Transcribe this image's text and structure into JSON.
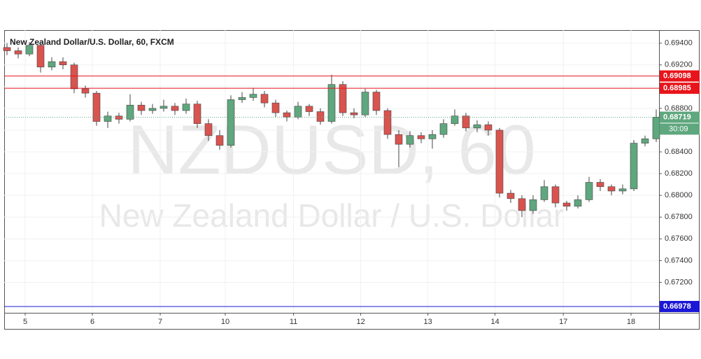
{
  "chart_data": {
    "type": "candlestick",
    "title": "New Zealand Dollar/U.S. Dollar, 60, FXCM",
    "watermark": "NZDUSD, 60",
    "watermark_subtitle": "New Zealand Dollar / U.S. Dollar",
    "up_color": "#5fa77e",
    "down_color": "#d9534f",
    "open": [
      0.6936,
      0.6933,
      0.693,
      0.6938,
      0.6918,
      0.6923,
      0.692,
      0.6898,
      0.6894,
      0.6868,
      0.6873,
      0.687,
      0.6883,
      0.6878,
      0.688,
      0.6882,
      0.6878,
      0.6884,
      0.6866,
      0.6855,
      0.6846,
      0.6888,
      0.689,
      0.6893,
      0.6885,
      0.6876,
      0.6872,
      0.6882,
      0.6877,
      0.6868,
      0.6902,
      0.6876,
      0.6874,
      0.6895,
      0.6878,
      0.6856,
      0.6847,
      0.6855,
      0.6852,
      0.6856,
      0.6866,
      0.6873,
      0.6862,
      0.6865,
      0.686,
      0.6802,
      0.6797,
      0.6786,
      0.6796,
      0.6808,
      0.6793,
      0.679,
      0.6796,
      0.6812,
      0.6808,
      0.6804,
      0.6806,
      0.6848,
      0.6852
    ],
    "high": [
      0.694,
      0.6936,
      0.6941,
      0.694,
      0.6927,
      0.6927,
      0.6922,
      0.6901,
      0.6896,
      0.6877,
      0.6876,
      0.6893,
      0.6886,
      0.6884,
      0.6888,
      0.6885,
      0.6889,
      0.6887,
      0.687,
      0.686,
      0.6892,
      0.6895,
      0.6899,
      0.6896,
      0.6888,
      0.6878,
      0.6886,
      0.6884,
      0.688,
      0.6911,
      0.6905,
      0.688,
      0.6898,
      0.6897,
      0.688,
      0.686,
      0.6859,
      0.6858,
      0.686,
      0.687,
      0.6879,
      0.6876,
      0.6869,
      0.6868,
      0.6862,
      0.6805,
      0.68,
      0.68,
      0.6814,
      0.681,
      0.6795,
      0.68,
      0.6817,
      0.6815,
      0.681,
      0.681,
      0.6851,
      0.6855,
      0.6879
    ],
    "low": [
      0.6929,
      0.6926,
      0.6928,
      0.6913,
      0.6915,
      0.6916,
      0.6894,
      0.689,
      0.6864,
      0.6862,
      0.6866,
      0.6868,
      0.6874,
      0.6875,
      0.6877,
      0.6874,
      0.6875,
      0.6862,
      0.685,
      0.6842,
      0.6844,
      0.6885,
      0.6887,
      0.6881,
      0.6872,
      0.6868,
      0.687,
      0.6873,
      0.6865,
      0.6866,
      0.6873,
      0.6871,
      0.6872,
      0.6874,
      0.6852,
      0.6826,
      0.6844,
      0.6848,
      0.6843,
      0.6853,
      0.6864,
      0.6859,
      0.6858,
      0.6855,
      0.6798,
      0.6793,
      0.678,
      0.6783,
      0.6794,
      0.6789,
      0.6786,
      0.6788,
      0.6794,
      0.6804,
      0.68,
      0.6801,
      0.6804,
      0.6845,
      0.6849
    ],
    "close": [
      0.6933,
      0.693,
      0.6938,
      0.6918,
      0.6923,
      0.692,
      0.6898,
      0.6894,
      0.6868,
      0.6873,
      0.687,
      0.6883,
      0.6878,
      0.688,
      0.6882,
      0.6878,
      0.6884,
      0.6866,
      0.6855,
      0.6846,
      0.6888,
      0.689,
      0.6893,
      0.6885,
      0.6876,
      0.6872,
      0.6882,
      0.6877,
      0.6868,
      0.6902,
      0.6876,
      0.6874,
      0.6895,
      0.6878,
      0.6856,
      0.6847,
      0.6855,
      0.6852,
      0.6856,
      0.6866,
      0.6873,
      0.6862,
      0.6865,
      0.686,
      0.6802,
      0.6797,
      0.6786,
      0.6796,
      0.6808,
      0.6793,
      0.679,
      0.6796,
      0.6812,
      0.6808,
      0.6804,
      0.6806,
      0.6848,
      0.6852,
      0.6872
    ],
    "xlim": [
      -0.25,
      58.25
    ],
    "xticks": [
      {
        "value": 1.625,
        "label": "5"
      },
      {
        "value": 7.625,
        "label": "6"
      },
      {
        "value": 13.69,
        "label": "7"
      },
      {
        "value": 19.5,
        "label": "10"
      },
      {
        "value": 25.6,
        "label": "11"
      },
      {
        "value": 31.6,
        "label": "12"
      },
      {
        "value": 37.6,
        "label": "13"
      },
      {
        "value": 43.6,
        "label": "14"
      },
      {
        "value": 49.7,
        "label": "17"
      },
      {
        "value": 55.75,
        "label": "18"
      }
    ],
    "ylim": [
      0.6692,
      0.6952
    ],
    "yticks": [
      {
        "value": 0.694,
        "label": "0.69400"
      },
      {
        "value": 0.692,
        "label": "0.69200"
      },
      {
        "value": 0.69,
        "label": "0.69000"
      },
      {
        "value": 0.688,
        "label": "0.68800"
      },
      {
        "value": 0.686,
        "label": "0.68600"
      },
      {
        "value": 0.684,
        "label": "0.68400"
      },
      {
        "value": 0.682,
        "label": "0.68200"
      },
      {
        "value": 0.68,
        "label": "0.68000"
      },
      {
        "value": 0.678,
        "label": "0.67800"
      },
      {
        "value": 0.676,
        "label": "0.67600"
      },
      {
        "value": 0.674,
        "label": "0.67400"
      },
      {
        "value": 0.672,
        "label": "0.67200"
      }
    ],
    "grid": true,
    "levels": [
      {
        "value": 0.69098,
        "label": "0.69098",
        "color": "#e8141b"
      },
      {
        "value": 0.68985,
        "label": "0.68985",
        "color": "#e8141b"
      },
      {
        "value": 0.66978,
        "label": "0.66978",
        "color": "#1b17d6"
      }
    ],
    "last_price": {
      "value": 0.68719,
      "label": "0.68719",
      "color": "#5fa77e"
    },
    "countdown": "30:09"
  }
}
